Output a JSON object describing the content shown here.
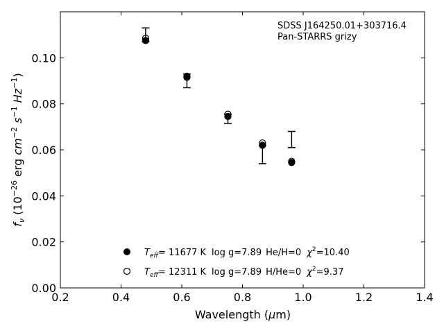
{
  "chart_data": {
    "type": "scatter",
    "title": "",
    "xlabel": "Wavelength (μm)",
    "ylabel": "fν (10⁻²⁶ erg cm⁻² s⁻¹ Hz⁻¹)",
    "xlim": [
      0.2,
      1.4
    ],
    "ylim": [
      0.0,
      0.12
    ],
    "xticks": [
      "0.2",
      "0.4",
      "0.6",
      "0.8",
      "1.0",
      "1.2",
      "1.4"
    ],
    "yticks": [
      "0.00",
      "0.02",
      "0.04",
      "0.06",
      "0.08",
      "0.10"
    ],
    "annotation": {
      "object": "SDSS J164250.01+303716.4",
      "survey": "Pan-STARRS grizy"
    },
    "observed": {
      "x": [
        0.481,
        0.617,
        0.752,
        0.866,
        0.962
      ],
      "y": [
        0.11,
        0.09,
        0.0735,
        0.058,
        0.0645
      ],
      "yerr": [
        0.003,
        0.003,
        0.002,
        0.004,
        0.0035
      ]
    },
    "series": [
      {
        "name": "T_eff= 11677 K  log g=7.89  He/H=0  χ²=10.40",
        "legend": {
          "teff": "= 11677 K",
          "logg": "log g=7.89",
          "comp": "He/H=0",
          "chi": "=10.40"
        },
        "marker": "filled",
        "x": [
          0.481,
          0.617,
          0.752,
          0.866,
          0.962
        ],
        "y": [
          0.1075,
          0.0915,
          0.0745,
          0.062,
          0.0545
        ]
      },
      {
        "name": "T_eff= 12311 K  log g=7.89  H/He=0  χ²=9.37",
        "legend": {
          "teff": "= 12311 K",
          "logg": "log g=7.89",
          "comp": "H/He=0",
          "chi": "=9.37"
        },
        "marker": "open",
        "x": [
          0.481,
          0.617,
          0.752,
          0.866,
          0.962
        ],
        "y": [
          0.1085,
          0.092,
          0.0755,
          0.063,
          0.055
        ]
      }
    ],
    "grid": false,
    "legend_position": "lower-center"
  }
}
